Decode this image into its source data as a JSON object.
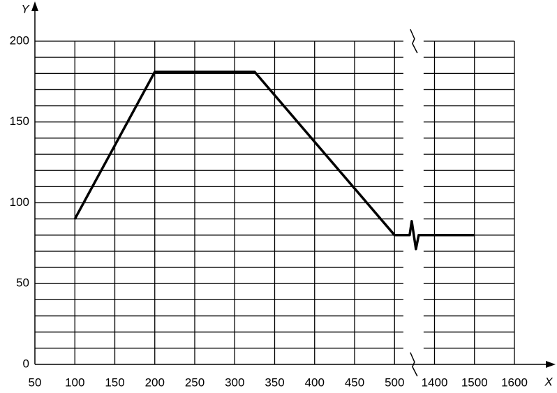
{
  "chart_data": {
    "type": "line",
    "x_label": "X",
    "y_label": "Y",
    "x": [
      100,
      200,
      325,
      500,
      1400,
      1500
    ],
    "series": [
      {
        "color": "#000000",
        "values": [
          90,
          181,
          181,
          80,
          80,
          80
        ]
      }
    ],
    "xlim": [
      50,
      1600
    ],
    "xticks": [
      50,
      100,
      150,
      200,
      250,
      300,
      350,
      400,
      450,
      500,
      1400,
      1500,
      1600
    ],
    "ylim": [
      0,
      200
    ],
    "yticks": [
      0,
      50,
      100,
      150,
      200
    ],
    "y_minor_ticks": [
      10,
      20,
      30,
      40,
      60,
      70,
      80,
      90,
      110,
      120,
      130,
      140,
      160,
      170,
      180,
      190
    ],
    "grid": true
  }
}
